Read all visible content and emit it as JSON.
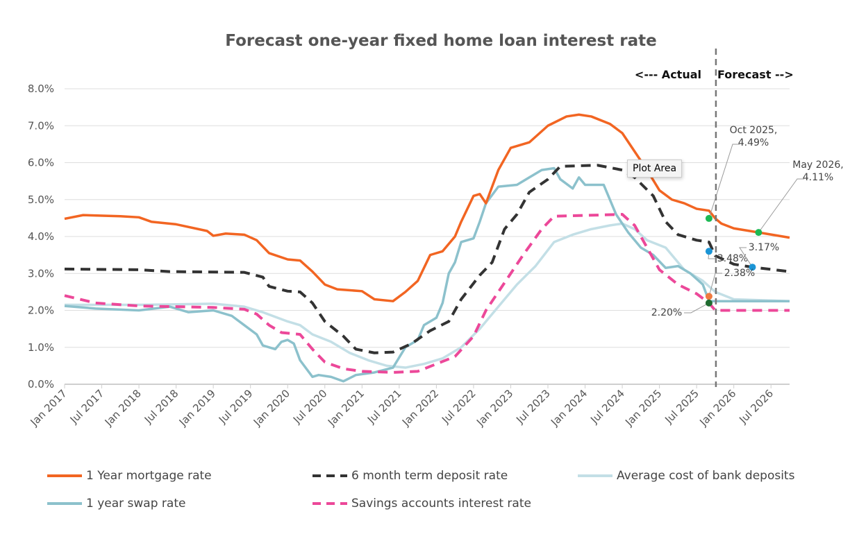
{
  "chart_data": {
    "type": "line",
    "title": "Forecast one-year fixed home loan interest rate",
    "xlabel": "",
    "ylabel": "",
    "xlim": [
      "2017-01",
      "2026-10"
    ],
    "ylim": [
      0,
      8
    ],
    "y_ticks": [
      "0.0%",
      "1.0%",
      "2.0%",
      "3.0%",
      "4.0%",
      "5.0%",
      "6.0%",
      "7.0%",
      "8.0%"
    ],
    "x_ticks": [
      "Jan 2017",
      "Jul 2017",
      "Jan 2018",
      "Jul 2018",
      "Jan 2019",
      "Jul 2019",
      "Jan 2020",
      "Jul 2020",
      "Jan 2021",
      "Jul 2021",
      "Jan 2022",
      "Jul 2022",
      "Jan 2023",
      "Jul 2023",
      "Jan 2024",
      "Jul 2024",
      "Jan 2025",
      "Jul 2025",
      "Jan 2026",
      "Jul 2026"
    ],
    "grid": "horizontal",
    "legend_position": "bottom",
    "divider": {
      "date": "2025-10",
      "left_label": "<--- Actual",
      "right_label": "Forecast -->"
    },
    "tooltip": "Plot Area",
    "series": [
      {
        "name": "1 Year mortgage rate",
        "color": "#f26522",
        "dash": false,
        "points": [
          [
            "2017-01",
            4.48
          ],
          [
            "2017-04",
            4.58
          ],
          [
            "2017-10",
            4.55
          ],
          [
            "2018-01",
            4.52
          ],
          [
            "2018-03",
            4.4
          ],
          [
            "2018-07",
            4.33
          ],
          [
            "2018-12",
            4.15
          ],
          [
            "2019-01",
            4.02
          ],
          [
            "2019-03",
            4.08
          ],
          [
            "2019-06",
            4.05
          ],
          [
            "2019-08",
            3.9
          ],
          [
            "2019-10",
            3.55
          ],
          [
            "2020-01",
            3.38
          ],
          [
            "2020-03",
            3.35
          ],
          [
            "2020-05",
            3.05
          ],
          [
            "2020-07",
            2.7
          ],
          [
            "2020-09",
            2.57
          ],
          [
            "2021-01",
            2.52
          ],
          [
            "2021-03",
            2.3
          ],
          [
            "2021-06",
            2.25
          ],
          [
            "2021-08",
            2.5
          ],
          [
            "2021-10",
            2.8
          ],
          [
            "2021-12",
            3.5
          ],
          [
            "2022-02",
            3.6
          ],
          [
            "2022-04",
            4.0
          ],
          [
            "2022-05",
            4.4
          ],
          [
            "2022-07",
            5.1
          ],
          [
            "2022-08",
            5.15
          ],
          [
            "2022-09",
            4.9
          ],
          [
            "2022-11",
            5.8
          ],
          [
            "2023-01",
            6.4
          ],
          [
            "2023-04",
            6.55
          ],
          [
            "2023-07",
            7.0
          ],
          [
            "2023-10",
            7.25
          ],
          [
            "2023-12",
            7.3
          ],
          [
            "2024-02",
            7.25
          ],
          [
            "2024-05",
            7.05
          ],
          [
            "2024-07",
            6.8
          ],
          [
            "2024-09",
            6.3
          ],
          [
            "2024-11",
            5.8
          ],
          [
            "2025-01",
            5.25
          ],
          [
            "2025-03",
            5.0
          ],
          [
            "2025-05",
            4.9
          ],
          [
            "2025-07",
            4.75
          ],
          [
            "2025-09",
            4.7
          ],
          [
            "2025-10",
            4.49
          ],
          [
            "2025-11",
            4.35
          ],
          [
            "2026-01",
            4.22
          ],
          [
            "2026-05",
            4.11
          ],
          [
            "2026-10",
            3.97
          ]
        ]
      },
      {
        "name": "6 month term deposit rate",
        "color": "#333333",
        "dash": true,
        "points": [
          [
            "2017-01",
            3.12
          ],
          [
            "2018-01",
            3.1
          ],
          [
            "2018-06",
            3.05
          ],
          [
            "2019-06",
            3.03
          ],
          [
            "2019-09",
            2.9
          ],
          [
            "2019-10",
            2.65
          ],
          [
            "2020-01",
            2.52
          ],
          [
            "2020-03",
            2.5
          ],
          [
            "2020-05",
            2.2
          ],
          [
            "2020-07",
            1.7
          ],
          [
            "2020-10",
            1.3
          ],
          [
            "2020-12",
            0.95
          ],
          [
            "2021-03",
            0.85
          ],
          [
            "2021-06",
            0.87
          ],
          [
            "2021-09",
            1.1
          ],
          [
            "2021-12",
            1.45
          ],
          [
            "2022-03",
            1.7
          ],
          [
            "2022-05",
            2.3
          ],
          [
            "2022-08",
            2.95
          ],
          [
            "2022-10",
            3.3
          ],
          [
            "2022-12",
            4.2
          ],
          [
            "2023-02",
            4.6
          ],
          [
            "2023-04",
            5.2
          ],
          [
            "2023-07",
            5.55
          ],
          [
            "2023-09",
            5.9
          ],
          [
            "2024-03",
            5.93
          ],
          [
            "2024-07",
            5.8
          ],
          [
            "2024-09",
            5.6
          ],
          [
            "2024-12",
            5.1
          ],
          [
            "2025-02",
            4.4
          ],
          [
            "2025-04",
            4.05
          ],
          [
            "2025-07",
            3.9
          ],
          [
            "2025-09",
            3.85
          ],
          [
            "2025-10",
            3.48
          ],
          [
            "2026-01",
            3.25
          ],
          [
            "2026-04",
            3.17
          ],
          [
            "2026-10",
            3.05
          ]
        ]
      },
      {
        "name": "Average cost of bank deposits",
        "color": "#c3dfe6",
        "dash": false,
        "points": [
          [
            "2017-01",
            2.15
          ],
          [
            "2018-01",
            2.15
          ],
          [
            "2019-01",
            2.18
          ],
          [
            "2019-06",
            2.1
          ],
          [
            "2019-09",
            1.95
          ],
          [
            "2020-01",
            1.7
          ],
          [
            "2020-03",
            1.6
          ],
          [
            "2020-05",
            1.35
          ],
          [
            "2020-08",
            1.15
          ],
          [
            "2020-11",
            0.85
          ],
          [
            "2021-02",
            0.65
          ],
          [
            "2021-05",
            0.5
          ],
          [
            "2021-08",
            0.45
          ],
          [
            "2021-11",
            0.55
          ],
          [
            "2022-02",
            0.7
          ],
          [
            "2022-05",
            1.0
          ],
          [
            "2022-08",
            1.5
          ],
          [
            "2022-11",
            2.1
          ],
          [
            "2023-02",
            2.7
          ],
          [
            "2023-05",
            3.2
          ],
          [
            "2023-08",
            3.85
          ],
          [
            "2023-11",
            4.05
          ],
          [
            "2024-02",
            4.2
          ],
          [
            "2024-05",
            4.3
          ],
          [
            "2024-07",
            4.35
          ],
          [
            "2024-09",
            4.2
          ],
          [
            "2024-11",
            3.9
          ],
          [
            "2025-02",
            3.7
          ],
          [
            "2025-05",
            3.1
          ],
          [
            "2025-08",
            2.8
          ],
          [
            "2025-10",
            2.5
          ],
          [
            "2026-01",
            2.3
          ],
          [
            "2026-10",
            2.25
          ]
        ]
      },
      {
        "name": "1 year swap rate",
        "color": "#8cc1cc",
        "dash": false,
        "points": [
          [
            "2017-01",
            2.12
          ],
          [
            "2017-06",
            2.05
          ],
          [
            "2018-01",
            2.0
          ],
          [
            "2018-06",
            2.1
          ],
          [
            "2018-09",
            1.95
          ],
          [
            "2019-01",
            2.0
          ],
          [
            "2019-04",
            1.85
          ],
          [
            "2019-06",
            1.6
          ],
          [
            "2019-08",
            1.35
          ],
          [
            "2019-09",
            1.05
          ],
          [
            "2019-11",
            0.95
          ],
          [
            "2019-12",
            1.15
          ],
          [
            "2020-01",
            1.2
          ],
          [
            "2020-02",
            1.1
          ],
          [
            "2020-03",
            0.65
          ],
          [
            "2020-05",
            0.2
          ],
          [
            "2020-06",
            0.25
          ],
          [
            "2020-08",
            0.2
          ],
          [
            "2020-10",
            0.08
          ],
          [
            "2020-12",
            0.25
          ],
          [
            "2021-03",
            0.32
          ],
          [
            "2021-06",
            0.45
          ],
          [
            "2021-08",
            1.0
          ],
          [
            "2021-10",
            1.2
          ],
          [
            "2021-11",
            1.6
          ],
          [
            "2022-01",
            1.8
          ],
          [
            "2022-02",
            2.2
          ],
          [
            "2022-03",
            3.0
          ],
          [
            "2022-04",
            3.3
          ],
          [
            "2022-05",
            3.85
          ],
          [
            "2022-07",
            3.95
          ],
          [
            "2022-08",
            4.4
          ],
          [
            "2022-09",
            4.9
          ],
          [
            "2022-11",
            5.35
          ],
          [
            "2023-02",
            5.4
          ],
          [
            "2023-04",
            5.6
          ],
          [
            "2023-06",
            5.8
          ],
          [
            "2023-08",
            5.85
          ],
          [
            "2023-09",
            5.55
          ],
          [
            "2023-11",
            5.3
          ],
          [
            "2023-12",
            5.6
          ],
          [
            "2024-01",
            5.4
          ],
          [
            "2024-04",
            5.4
          ],
          [
            "2024-06",
            4.6
          ],
          [
            "2024-08",
            4.1
          ],
          [
            "2024-10",
            3.7
          ],
          [
            "2024-12",
            3.5
          ],
          [
            "2025-02",
            3.15
          ],
          [
            "2025-04",
            3.2
          ],
          [
            "2025-06",
            3.0
          ],
          [
            "2025-08",
            2.7
          ],
          [
            "2025-09",
            2.25
          ],
          [
            "2026-10",
            2.25
          ]
        ]
      },
      {
        "name": "Savings accounts interest rate",
        "color": "#ec4899",
        "dash": true,
        "points": [
          [
            "2017-01",
            2.4
          ],
          [
            "2017-06",
            2.2
          ],
          [
            "2018-01",
            2.12
          ],
          [
            "2019-01",
            2.08
          ],
          [
            "2019-06",
            2.03
          ],
          [
            "2019-08",
            1.9
          ],
          [
            "2019-10",
            1.6
          ],
          [
            "2019-12",
            1.4
          ],
          [
            "2020-03",
            1.35
          ],
          [
            "2020-05",
            0.95
          ],
          [
            "2020-07",
            0.6
          ],
          [
            "2020-10",
            0.42
          ],
          [
            "2021-01",
            0.35
          ],
          [
            "2021-06",
            0.32
          ],
          [
            "2021-10",
            0.35
          ],
          [
            "2022-01",
            0.55
          ],
          [
            "2022-04",
            0.75
          ],
          [
            "2022-07",
            1.3
          ],
          [
            "2022-09",
            2.0
          ],
          [
            "2022-11",
            2.5
          ],
          [
            "2023-01",
            3.0
          ],
          [
            "2023-03",
            3.5
          ],
          [
            "2023-06",
            4.2
          ],
          [
            "2023-08",
            4.55
          ],
          [
            "2024-03",
            4.58
          ],
          [
            "2024-07",
            4.6
          ],
          [
            "2024-09",
            4.3
          ],
          [
            "2024-11",
            3.7
          ],
          [
            "2025-01",
            3.1
          ],
          [
            "2025-04",
            2.7
          ],
          [
            "2025-07",
            2.45
          ],
          [
            "2025-09",
            2.2
          ],
          [
            "2025-10",
            2.0
          ],
          [
            "2026-10",
            2.0
          ]
        ]
      }
    ],
    "annotations": [
      {
        "date": "2025-10",
        "value": 4.49,
        "label": "Oct 2025,",
        "label2": "4.49%",
        "color": "#1db954"
      },
      {
        "date": "2026-05",
        "value": 4.11,
        "label": "May 2026,",
        "label2": "4.11%",
        "color": "#1db954"
      },
      {
        "date": "2025-10",
        "value": 3.6,
        "label": "3.48%",
        "color": "#1b95d6"
      },
      {
        "date": "2026-04",
        "value": 3.17,
        "label": "3.17%",
        "color": "#1b95d6"
      },
      {
        "date": "2025-10",
        "value": 2.38,
        "label": "2.38%",
        "color": "#f07a3f"
      },
      {
        "date": "2025-10",
        "value": 2.2,
        "label": "2.20%",
        "color": "#1f6b2f"
      }
    ]
  }
}
